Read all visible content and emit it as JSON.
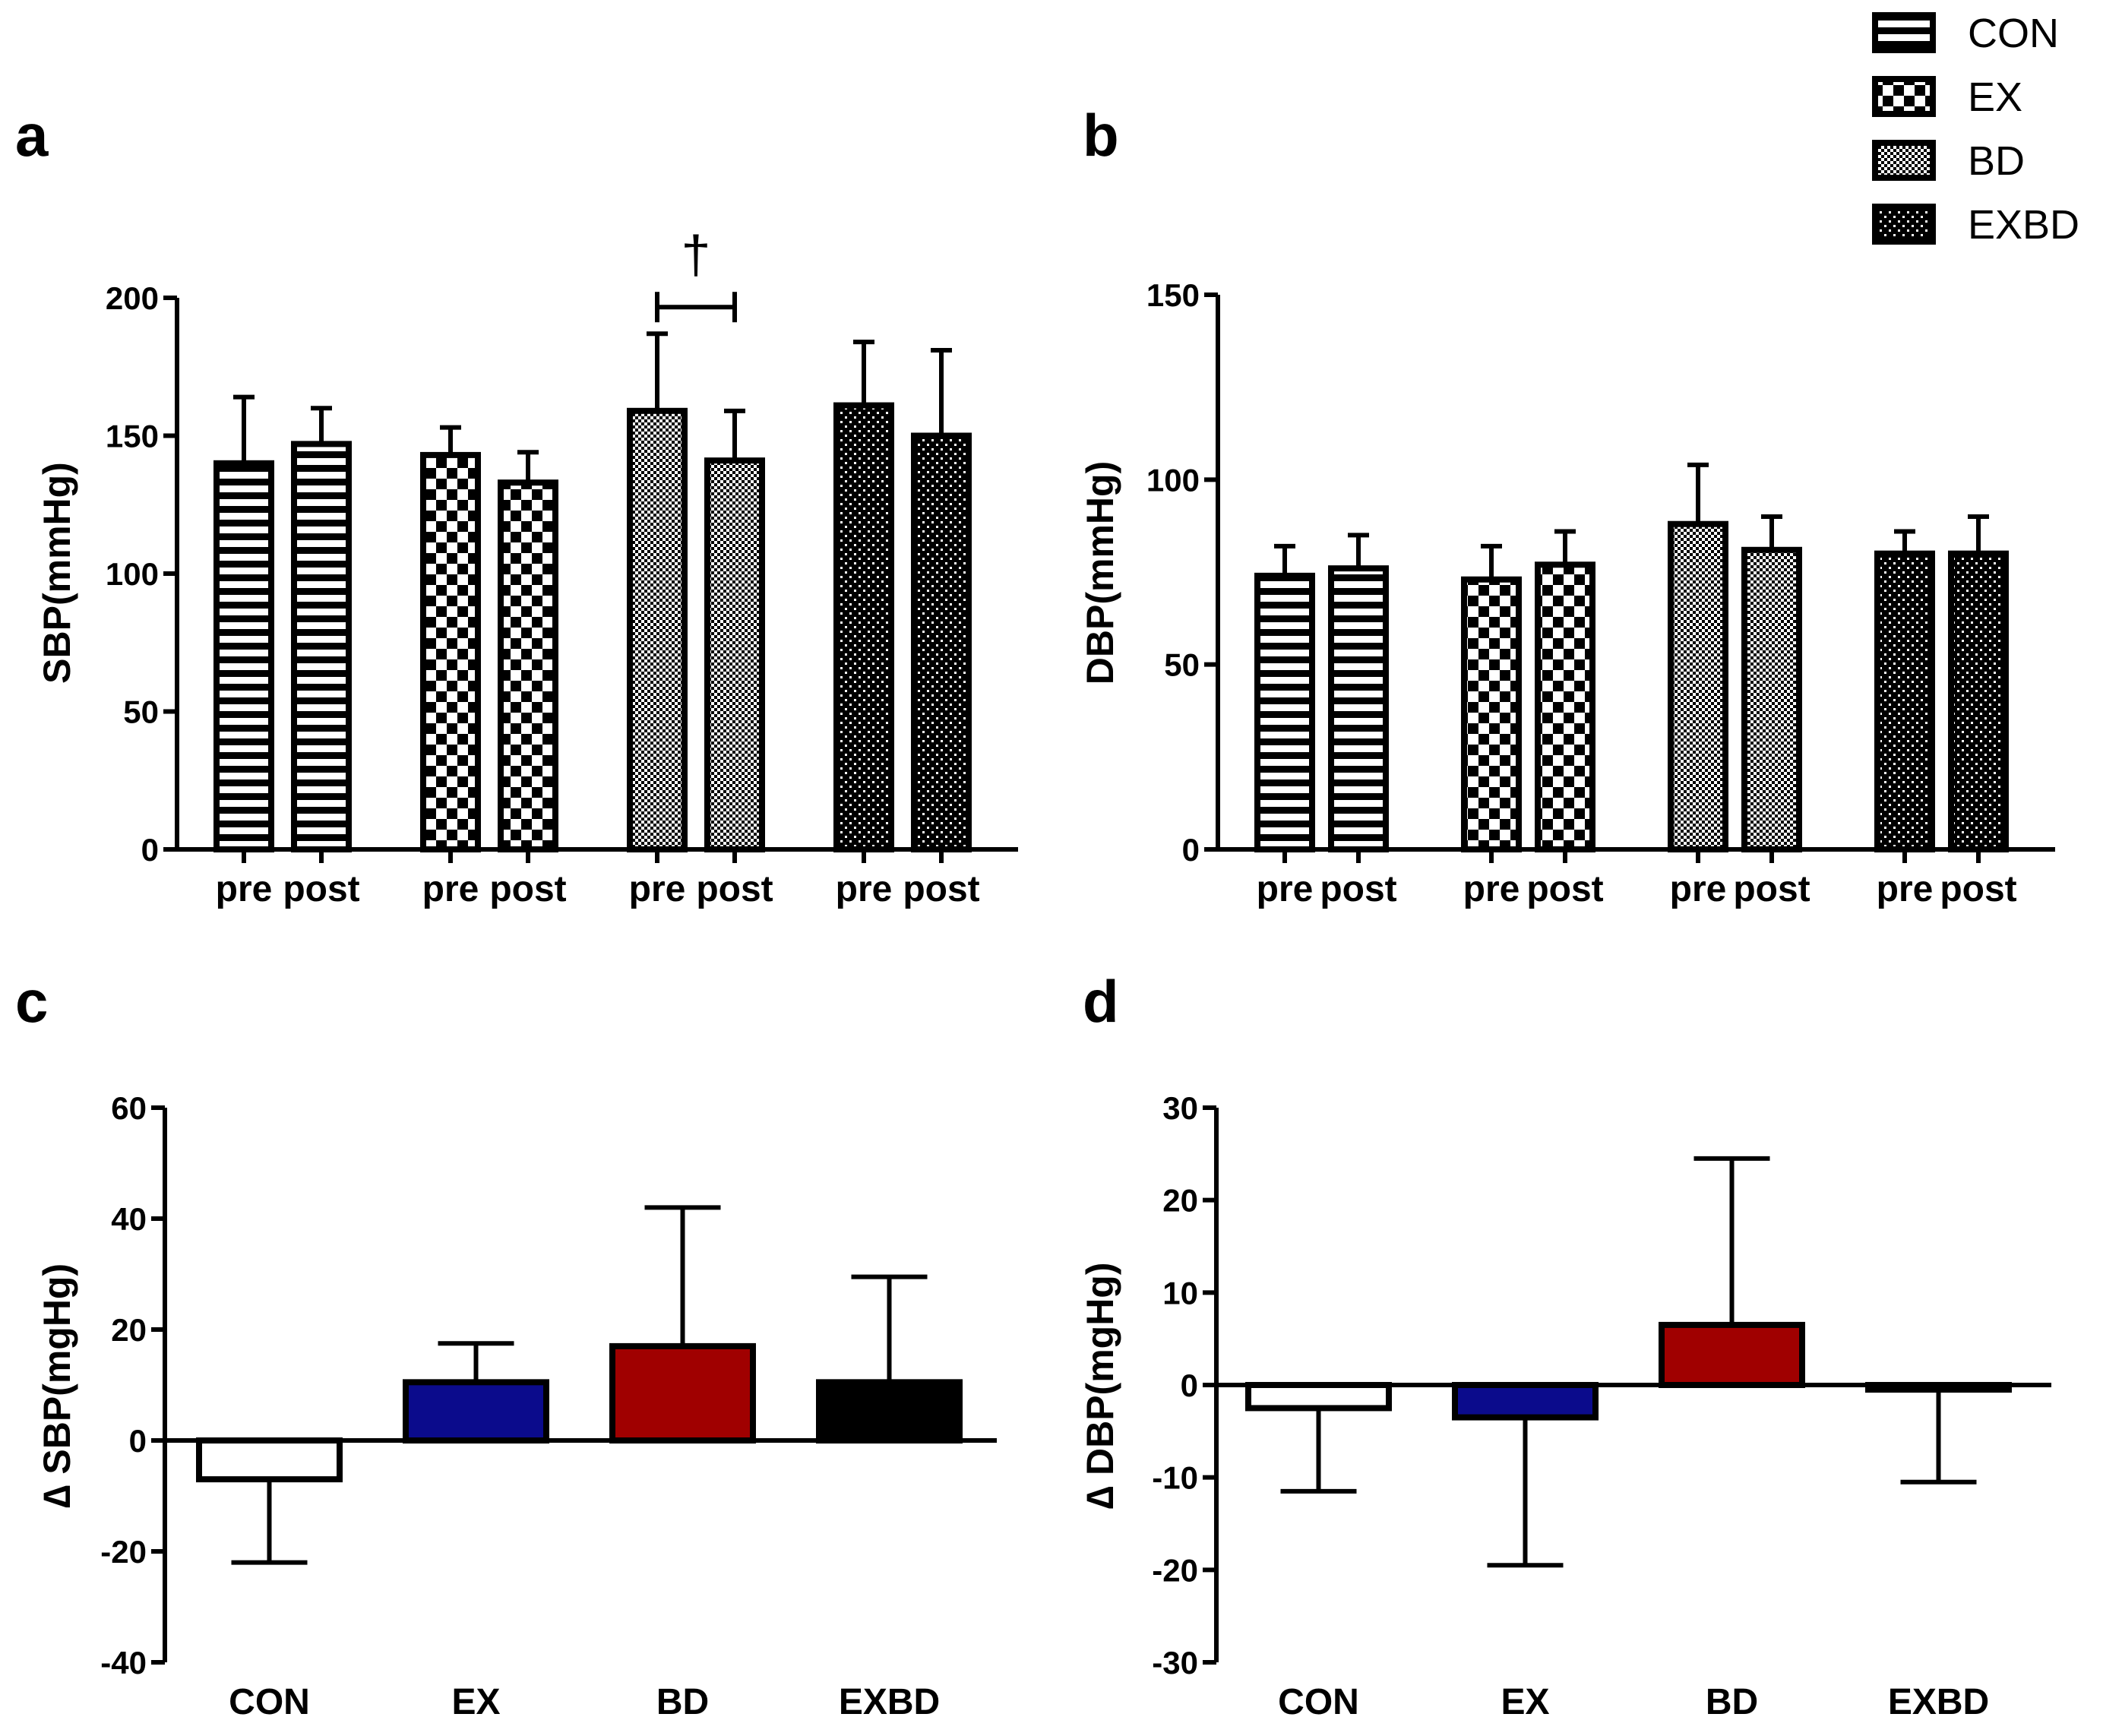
{
  "legend": {
    "items": [
      {
        "label": "CON",
        "pattern": "stripes"
      },
      {
        "label": "EX",
        "pattern": "checker"
      },
      {
        "label": "BD",
        "pattern": "fine"
      },
      {
        "label": "EXBD",
        "pattern": "dots"
      }
    ]
  },
  "chart_data": [
    {
      "panel": "a",
      "type": "bar",
      "ylabel": "SBP(mmHg)",
      "ylim": [
        0,
        200
      ],
      "yticks": [
        0,
        50,
        100,
        150,
        200
      ],
      "groups": [
        "CON",
        "EX",
        "BD",
        "EXBD"
      ],
      "categories": [
        "pre",
        "post"
      ],
      "series": [
        {
          "name": "CON",
          "pattern": "stripes",
          "values": [
            140,
            147
          ],
          "errors": [
            24,
            13
          ]
        },
        {
          "name": "EX",
          "pattern": "checker",
          "values": [
            143,
            133
          ],
          "errors": [
            10,
            11
          ]
        },
        {
          "name": "BD",
          "pattern": "fine",
          "values": [
            159,
            141
          ],
          "errors": [
            28,
            18
          ]
        },
        {
          "name": "EXBD",
          "pattern": "dots",
          "values": [
            161,
            150
          ],
          "errors": [
            23,
            31
          ]
        }
      ],
      "annotations": [
        {
          "text": "†",
          "group": "BD"
        }
      ]
    },
    {
      "panel": "b",
      "type": "bar",
      "ylabel": "DBP(mmHg)",
      "ylim": [
        0,
        150
      ],
      "yticks": [
        0,
        50,
        100,
        150
      ],
      "groups": [
        "CON",
        "EX",
        "BD",
        "EXBD"
      ],
      "categories": [
        "pre",
        "post"
      ],
      "series": [
        {
          "name": "CON",
          "pattern": "stripes",
          "values": [
            74,
            76
          ],
          "errors": [
            8,
            9
          ]
        },
        {
          "name": "EX",
          "pattern": "checker",
          "values": [
            73,
            77
          ],
          "errors": [
            9,
            9
          ]
        },
        {
          "name": "BD",
          "pattern": "fine",
          "values": [
            88,
            81
          ],
          "errors": [
            16,
            9
          ]
        },
        {
          "name": "EXBD",
          "pattern": "dots",
          "values": [
            80,
            80
          ],
          "errors": [
            6,
            10
          ]
        }
      ]
    },
    {
      "panel": "c",
      "type": "bar",
      "ylabel": "∆ SBP(mgHg)",
      "ylim": [
        -40,
        60
      ],
      "yticks": [
        -40,
        -20,
        0,
        20,
        40,
        60
      ],
      "categories": [
        "CON",
        "EX",
        "BD",
        "EXBD"
      ],
      "values": [
        -7,
        10.5,
        17,
        10.5
      ],
      "errors": [
        15,
        7,
        25,
        19
      ],
      "colors": [
        "#ffffff",
        "#0b0b8c",
        "#a00000",
        "#000000"
      ]
    },
    {
      "panel": "d",
      "type": "bar",
      "ylabel": "∆ DBP(mgHg)",
      "ylim": [
        -30,
        30
      ],
      "yticks": [
        -30,
        -20,
        -10,
        0,
        10,
        20,
        30
      ],
      "categories": [
        "CON",
        "EX",
        "BD",
        "EXBD"
      ],
      "values": [
        -2.5,
        -3.5,
        6.5,
        -0.5
      ],
      "errors": [
        9,
        16,
        18,
        10
      ],
      "colors": [
        "#ffffff",
        "#0b0b8c",
        "#a00000",
        "#000000"
      ]
    }
  ]
}
